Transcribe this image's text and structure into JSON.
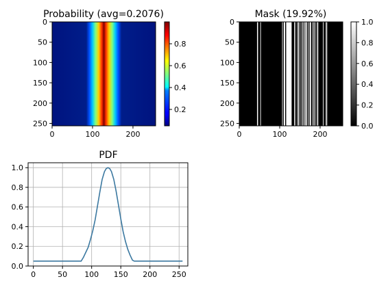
{
  "figure": {
    "prob_title": "Probability (avg=0.2076)",
    "mask_title": "Mask (19.92%)",
    "pdf_title": "PDF"
  },
  "chart_data": [
    {
      "type": "heatmap",
      "title": "Probability (avg=0.2076)",
      "colormap": "jet",
      "x_range": [
        0,
        255
      ],
      "y_range": [
        0,
        255
      ],
      "y_inverted": true,
      "x_ticks": [
        "0",
        "100",
        "200"
      ],
      "y_ticks": [
        "0",
        "50",
        "100",
        "150",
        "200",
        "250"
      ],
      "colorbar_ticks": [
        "0.2",
        "0.4",
        "0.6",
        "0.8"
      ],
      "colorbar_range": [
        0.05,
        1.0
      ],
      "profile": "PDF (constant along rows)"
    },
    {
      "type": "heatmap",
      "title": "Mask (19.92%)",
      "colormap": "gray",
      "x_range": [
        0,
        255
      ],
      "y_range": [
        0,
        255
      ],
      "y_inverted": true,
      "x_ticks": [
        "0",
        "100",
        "200"
      ],
      "y_ticks": [
        "0",
        "50",
        "100",
        "150",
        "200",
        "250"
      ],
      "colorbar_ticks": [
        "0.0",
        "0.2",
        "0.4",
        "0.6",
        "0.8",
        "1.0"
      ],
      "colorbar_range": [
        0.0,
        1.0
      ],
      "white_columns": [
        44,
        45,
        52,
        106,
        110,
        111,
        112,
        116,
        117,
        118,
        119,
        120,
        121,
        122,
        123,
        124,
        125,
        126,
        127,
        128,
        136,
        137,
        143,
        146,
        147,
        152,
        156,
        159,
        162,
        164,
        166,
        170,
        174,
        175,
        176,
        181,
        184,
        187,
        192,
        194,
        207,
        214,
        216
      ]
    },
    {
      "type": "line",
      "title": "PDF",
      "xlim": [
        -9,
        265
      ],
      "ylim": [
        0,
        1.05
      ],
      "x_ticks": [
        "0",
        "50",
        "100",
        "150",
        "200",
        "250"
      ],
      "y_ticks": [
        "0.0",
        "0.2",
        "0.4",
        "0.6",
        "0.8",
        "1.0"
      ],
      "grid": true,
      "color": "#3b78a0",
      "series": [
        {
          "x": [
            0,
            82,
            86,
            90,
            94,
            98,
            102,
            106,
            110,
            114,
            118,
            122,
            125,
            128,
            131,
            134,
            138,
            142,
            146,
            150,
            154,
            158,
            162,
            166,
            170,
            173,
            256
          ],
          "values": [
            0.05,
            0.05,
            0.09,
            0.14,
            0.19,
            0.27,
            0.36,
            0.47,
            0.61,
            0.75,
            0.88,
            0.96,
            0.99,
            1.0,
            0.99,
            0.96,
            0.88,
            0.76,
            0.62,
            0.48,
            0.35,
            0.25,
            0.17,
            0.11,
            0.06,
            0.05,
            0.05
          ]
        }
      ]
    }
  ]
}
